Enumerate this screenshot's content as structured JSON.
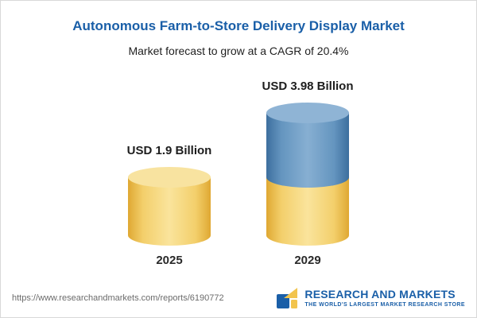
{
  "header": {
    "title": "Autonomous Farm-to-Store Delivery Display Market",
    "subtitle": "Market forecast to grow at a CAGR of 20.4%"
  },
  "chart_data": {
    "type": "bar",
    "subtype": "3d-cylinder",
    "categories": [
      "2025",
      "2029"
    ],
    "values": [
      1.9,
      3.98
    ],
    "value_labels": [
      "USD 1.9 Billion",
      "USD 3.98 Billion"
    ],
    "unit": "USD Billion",
    "title": "Autonomous Farm-to-Store Delivery Display Market",
    "subtitle": "Market forecast to grow at a CAGR of 20.4%",
    "cagr_percent": 20.4,
    "grid": false,
    "legend": "none",
    "colors": {
      "bar_2025": "#f0c75e",
      "bar_2029_base": "#f0c75e",
      "bar_2029_growth": "#5b8db8",
      "title": "#1a5fa8"
    },
    "notes": "2029 bar is stacked: gold base segment equal to 2025 value, blue growth segment on top"
  },
  "footer": {
    "url": "https://www.researchandmarkets.com/reports/6190772",
    "logo": {
      "name": "RESEARCH AND MARKETS",
      "tagline": "THE WORLD'S LARGEST MARKET RESEARCH STORE"
    }
  }
}
